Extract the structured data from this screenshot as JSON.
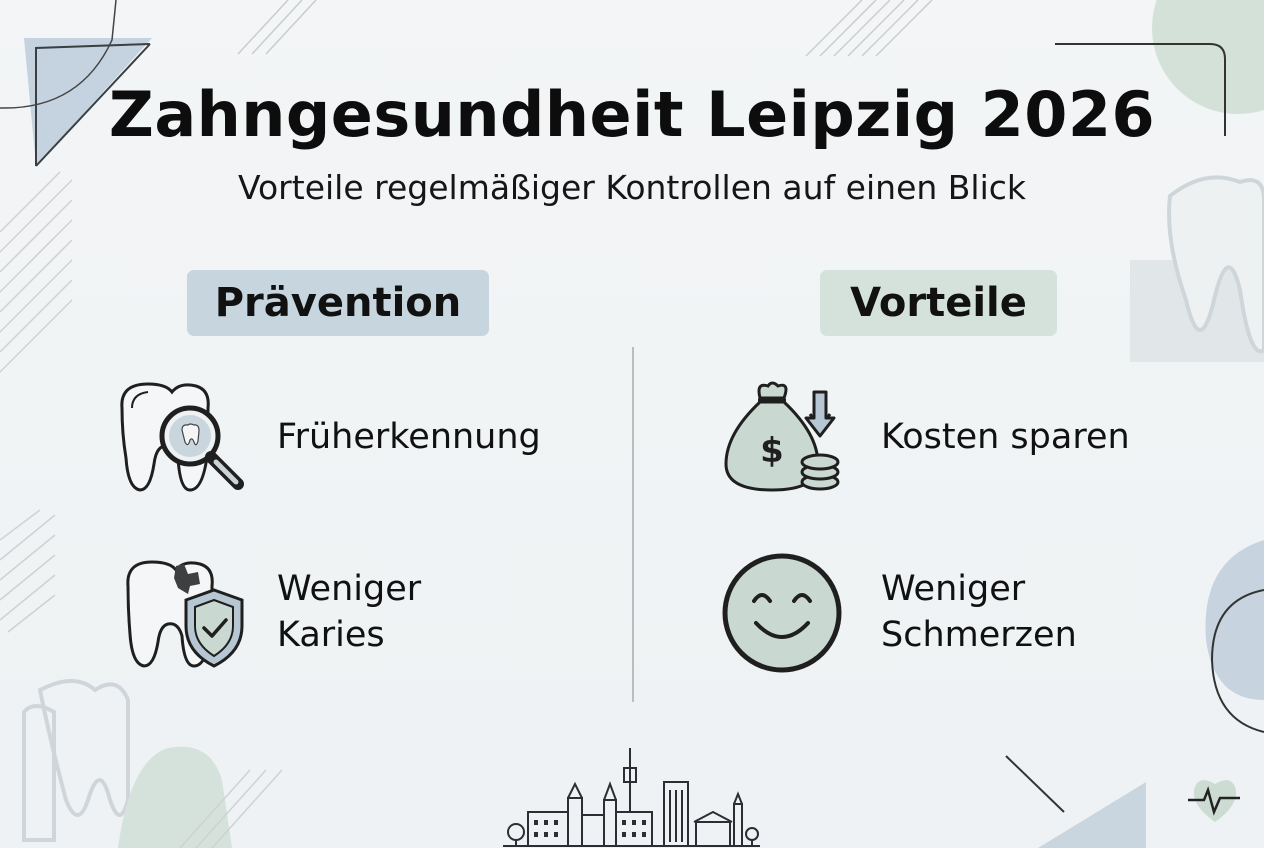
{
  "header": {
    "title": "Zahngesundheit Leipzig 2026",
    "subtitle": "Vorteile regelmäßiger Kontrollen auf einen Blick"
  },
  "columns": [
    {
      "heading": "Prävention",
      "items": [
        {
          "icon": "tooth-magnifier-icon",
          "line1": "Früherkennung",
          "line2": ""
        },
        {
          "icon": "tooth-shield-icon",
          "line1": "Weniger",
          "line2": "Karies"
        }
      ]
    },
    {
      "heading": "Vorteile",
      "items": [
        {
          "icon": "money-bag-coins-icon",
          "line1": "Kosten sparen",
          "line2": ""
        },
        {
          "icon": "smiley-face-icon",
          "line1": "Weniger",
          "line2": "Schmerzen"
        }
      ]
    }
  ],
  "colors": {
    "pill_blue": "#c7d5df",
    "pill_green": "#d5e2dc",
    "icon_green": "#c9d8d0",
    "icon_blue": "#b9c9d4"
  }
}
